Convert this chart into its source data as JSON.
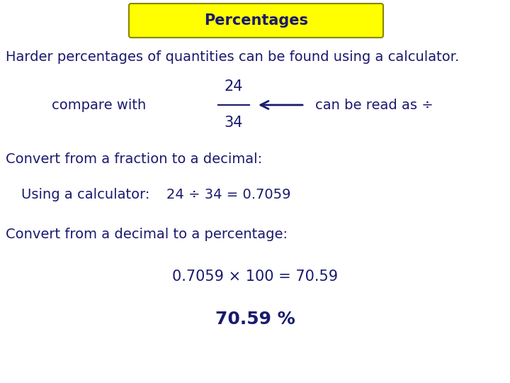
{
  "title": "Percentages",
  "title_bg": "#ffff00",
  "title_border": "#888800",
  "bg_color": "#ffffff",
  "text_color": "#1a1a6e",
  "line1": "Harder percentages of quantities can be found using a calculator.",
  "compare_label": "compare with",
  "frac_num": "24",
  "frac_den": "34",
  "arrow_label": "can be read as ÷",
  "line3": "Convert from a fraction to a decimal:",
  "line4_label": "Using a calculator:",
  "line4_eq": "24 ÷ 34 = 0.7059",
  "line5": "Convert from a decimal to a percentage:",
  "line6": "0.7059 × 100 = 70.59",
  "line7": "70.59 %",
  "font_size_title": 15,
  "font_size_body": 14,
  "font_size_large": 15
}
